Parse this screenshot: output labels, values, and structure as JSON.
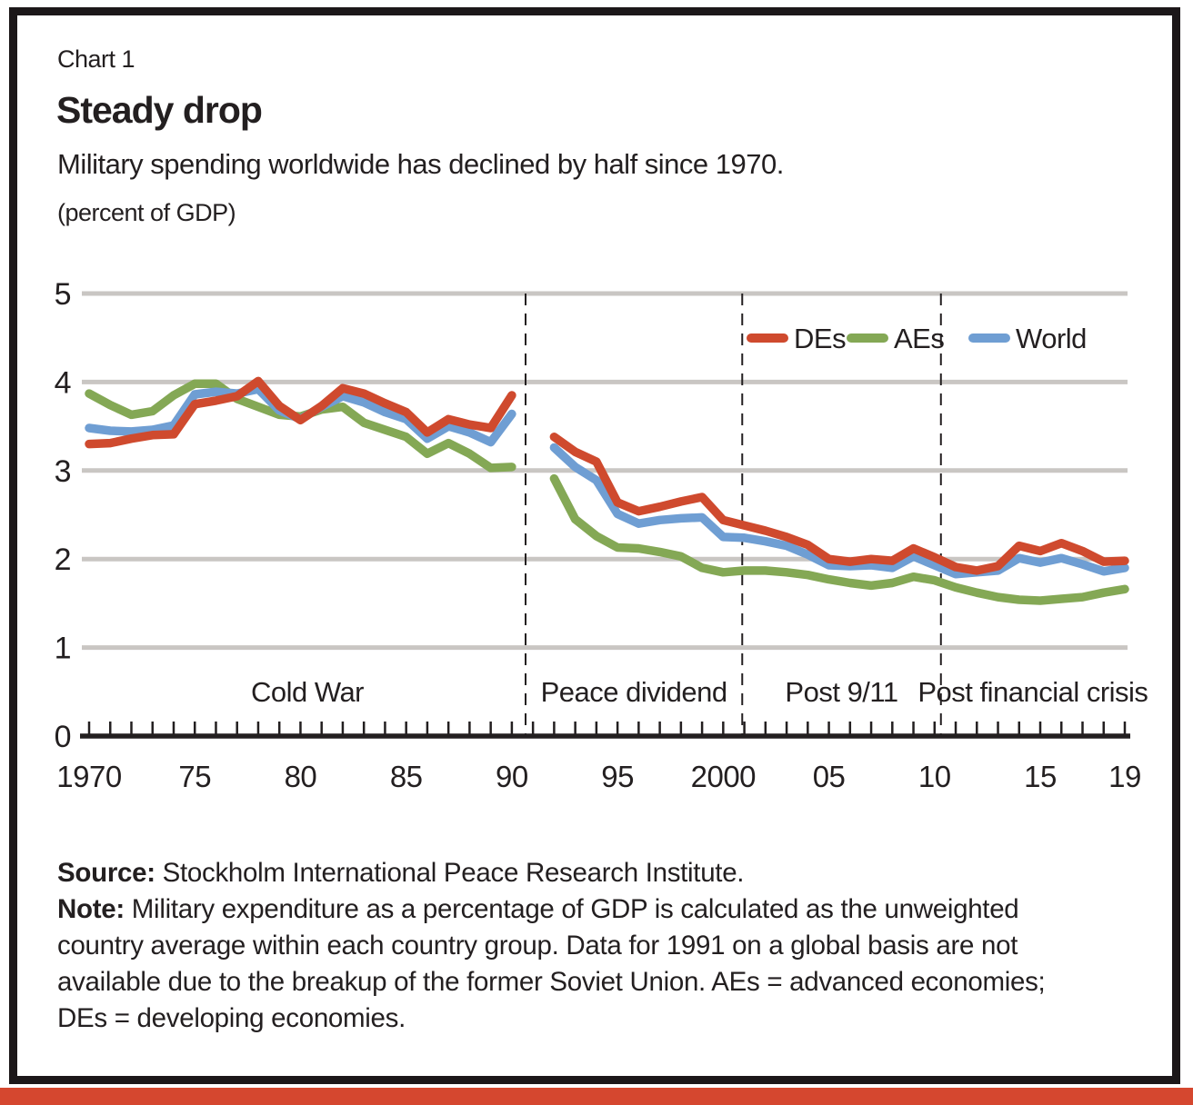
{
  "header": {
    "kicker": "Chart 1",
    "title": "Steady drop",
    "subtitle": "Military spending worldwide has declined by half since 1970.",
    "unit_label": "(percent of GDP)"
  },
  "colors": {
    "des_red": "#cf4a2e",
    "aes_green": "#84a855",
    "world_blue": "#6f9ed3",
    "gridline_gray": "#c9c6c3",
    "axis_black": "#231f20",
    "accent_bar_red": "#d5472f"
  },
  "chart_data": {
    "type": "line",
    "title": "Steady drop",
    "subtitle": "Military spending worldwide has declined by half since 1970.",
    "ylabel": "(percent of GDP)",
    "ylim": [
      0,
      5
    ],
    "xlim": [
      1970,
      2019
    ],
    "grid": "horizontal",
    "legend_position": "top-right-inside",
    "gap_note": "no data for 1991",
    "yticks": [
      {
        "value": 0,
        "label": "0"
      },
      {
        "value": 1,
        "label": "1"
      },
      {
        "value": 2,
        "label": "2"
      },
      {
        "value": 3,
        "label": "3"
      },
      {
        "value": 4,
        "label": "4"
      },
      {
        "value": 5,
        "label": "5"
      }
    ],
    "xticks": [
      {
        "year": 1970,
        "label": "1970"
      },
      {
        "year": 1975,
        "label": "75"
      },
      {
        "year": 1980,
        "label": "80"
      },
      {
        "year": 1985,
        "label": "85"
      },
      {
        "year": 1990,
        "label": "90"
      },
      {
        "year": 1995,
        "label": "95"
      },
      {
        "year": 2000,
        "label": "2000"
      },
      {
        "year": 2005,
        "label": "05"
      },
      {
        "year": 2010,
        "label": "10"
      },
      {
        "year": 2015,
        "label": "15"
      },
      {
        "year": 2019,
        "label": "19"
      }
    ],
    "minor_tick_every_year": true,
    "eras": [
      {
        "label": "Cold War",
        "from": 1970.0,
        "to": 1990.65
      },
      {
        "label": "Peace dividend",
        "from": 1990.65,
        "to": 2000.9
      },
      {
        "label": "Post 9/11",
        "from": 2000.9,
        "to": 2010.3
      },
      {
        "label": "Post financial crisis",
        "from": 2010.3,
        "to": 2019.0
      }
    ],
    "series": [
      {
        "name": "DEs",
        "color": "#cf4a2e",
        "z": 3,
        "segments": [
          {
            "start_year": 1970,
            "values": [
              3.3,
              3.31,
              3.36,
              3.4,
              3.41,
              3.75,
              3.79,
              3.84,
              4.01,
              3.73,
              3.57,
              3.73,
              3.93,
              3.87,
              3.76,
              3.66,
              3.43,
              3.58,
              3.52,
              3.48,
              3.85
            ]
          },
          {
            "start_year": 1992,
            "values": [
              3.38,
              3.21,
              3.1,
              2.64,
              2.54,
              2.59,
              2.65,
              2.7,
              2.44,
              2.38,
              2.32,
              2.25,
              2.16,
              2.0,
              1.97,
              2.0,
              1.98,
              2.12,
              2.02,
              1.91,
              1.87,
              1.92,
              2.15,
              2.09,
              2.18,
              2.09,
              1.97,
              1.98
            ]
          }
        ]
      },
      {
        "name": "AEs",
        "color": "#84a855",
        "z": 1,
        "segments": [
          {
            "start_year": 1970,
            "values": [
              3.87,
              3.74,
              3.63,
              3.67,
              3.85,
              3.98,
              3.98,
              3.81,
              3.72,
              3.63,
              3.61,
              3.69,
              3.72,
              3.54,
              3.46,
              3.38,
              3.19,
              3.31,
              3.19,
              3.03,
              3.04
            ]
          },
          {
            "start_year": 1992,
            "values": [
              2.91,
              2.45,
              2.26,
              2.13,
              2.12,
              2.08,
              2.03,
              1.9,
              1.85,
              1.87,
              1.87,
              1.85,
              1.82,
              1.77,
              1.73,
              1.7,
              1.73,
              1.8,
              1.76,
              1.68,
              1.62,
              1.57,
              1.54,
              1.53,
              1.55,
              1.57,
              1.62,
              1.66
            ]
          }
        ]
      },
      {
        "name": "World",
        "color": "#6f9ed3",
        "z": 2,
        "segments": [
          {
            "start_year": 1970,
            "values": [
              3.48,
              3.45,
              3.44,
              3.46,
              3.51,
              3.86,
              3.89,
              3.87,
              3.92,
              3.68,
              3.58,
              3.72,
              3.84,
              3.77,
              3.66,
              3.58,
              3.36,
              3.5,
              3.43,
              3.32,
              3.64
            ]
          },
          {
            "start_year": 1992,
            "values": [
              3.26,
              3.04,
              2.89,
              2.51,
              2.4,
              2.44,
              2.46,
              2.47,
              2.25,
              2.24,
              2.2,
              2.15,
              2.05,
              1.93,
              1.92,
              1.93,
              1.9,
              2.03,
              1.93,
              1.83,
              1.85,
              1.87,
              2.01,
              1.96,
              2.01,
              1.94,
              1.86,
              1.9
            ]
          }
        ]
      }
    ]
  },
  "footer": {
    "source_label": "Source:",
    "source_text": " Stockholm International Peace Research Institute.",
    "note_label": "Note:",
    "note_text": " Military expenditure as a percentage of GDP is calculated as the unweighted country average within each country group. Data for 1991 on a global basis are not available due to the breakup of the former Soviet Union. AEs = advanced economies; DEs = developing economies."
  }
}
